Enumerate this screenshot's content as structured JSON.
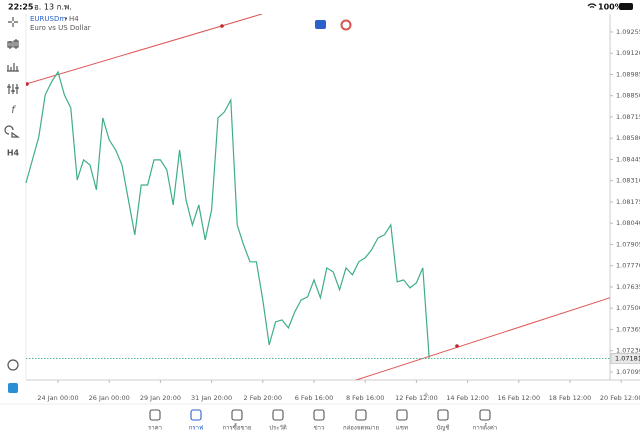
{
  "status_bar": {
    "time": "22:25",
    "date": "อ. 13 ก.พ.",
    "battery": "100%"
  },
  "symbol": {
    "name": "EURUSDm",
    "timeframe": "H4",
    "description": "Euro vs US Dollar"
  },
  "toolbar": {
    "timeframe": "H4"
  },
  "chart_data": {
    "type": "line",
    "color": "#3fae87",
    "categories": [
      null,
      null,
      null,
      null,
      null,
      "24 Jan 00:00",
      null,
      null,
      null,
      null,
      null,
      null,
      null,
      "26 Jan 00:00",
      null,
      null,
      null,
      null,
      null,
      null,
      null,
      "29 Jan 20:00",
      null,
      null,
      null,
      null,
      null,
      null,
      null,
      "31 Jan 20:00",
      null,
      null,
      null,
      null,
      null,
      null,
      null,
      "2 Feb 20:00",
      null,
      null,
      null,
      null,
      null,
      null,
      null,
      "6 Feb 16:00",
      null,
      null,
      null,
      null,
      null,
      null,
      null,
      "8 Feb 16:00",
      null,
      null,
      null,
      null,
      null,
      null,
      null,
      "12 Feb 12:00",
      null,
      null,
      null,
      null,
      null,
      null,
      null,
      "14 Feb 12:00",
      null,
      null,
      null,
      null,
      null,
      null,
      null,
      "16 Feb 12:00",
      null,
      null,
      null,
      null,
      null,
      null,
      null,
      "18 Feb 12:00",
      null,
      null,
      null,
      null,
      null,
      null,
      null,
      "20 Feb 12:00"
    ],
    "values": [
      1.08296,
      1.08442,
      1.08588,
      1.08855,
      1.08938,
      1.09001,
      1.08855,
      1.08772,
      1.08315,
      1.08442,
      1.0841,
      1.08252,
      1.08709,
      1.08569,
      1.08506,
      1.0841,
      1.08188,
      1.07966,
      1.08283,
      1.08283,
      1.08442,
      1.08442,
      1.08379,
      1.08156,
      1.08506,
      1.08188,
      1.08029,
      1.08156,
      1.07934,
      1.08125,
      1.08709,
      1.08747,
      1.08823,
      1.08029,
      1.07902,
      1.07795,
      1.07795,
      1.07553,
      1.07267,
      1.07414,
      1.07426,
      1.07375,
      1.07477,
      1.07553,
      1.07572,
      1.0768,
      1.07566,
      1.07756,
      1.07731,
      1.07617,
      1.07756,
      1.07712,
      1.07795,
      1.0782,
      1.07871,
      1.07947,
      1.07966,
      1.08029,
      1.07668,
      1.0768,
      1.07629,
      1.07661,
      1.07756,
      1.07181,
      null,
      null,
      null,
      null,
      null,
      null,
      null,
      null,
      null,
      null,
      null,
      null,
      null,
      null,
      null,
      null,
      null,
      null,
      null,
      null,
      null,
      null,
      null,
      null,
      null,
      null,
      null,
      null,
      null,
      null
    ],
    "ylim": [
      1.07044,
      1.09369
    ],
    "yticks": [
      1.09255,
      {
        "value": 1.0912,
        "label": "1.09120"
      },
      1.08985,
      {
        "value": 1.0885,
        "label": "1.08850"
      },
      1.08715,
      {
        "value": 1.0858,
        "label": "1.08580"
      },
      1.08445,
      {
        "value": 1.0831,
        "label": "1.08310"
      },
      1.08175,
      {
        "value": 1.0804,
        "label": "1.08040"
      },
      1.07905,
      {
        "value": 1.0777,
        "label": "1.07770"
      },
      1.07635,
      {
        "value": 1.075,
        "label": "1.07500"
      },
      1.07365,
      {
        "value": 1.0723,
        "label": "1.07230"
      },
      1.07095
    ],
    "current_price": 1.07181
  },
  "tabs": [
    "ราคา",
    "กราฟ",
    "การซื้อขาย",
    "ประวัติ",
    "ข่าว",
    "กล่องจดหมาย",
    "แชท",
    "บัญชี",
    "การตั้งค่า"
  ]
}
